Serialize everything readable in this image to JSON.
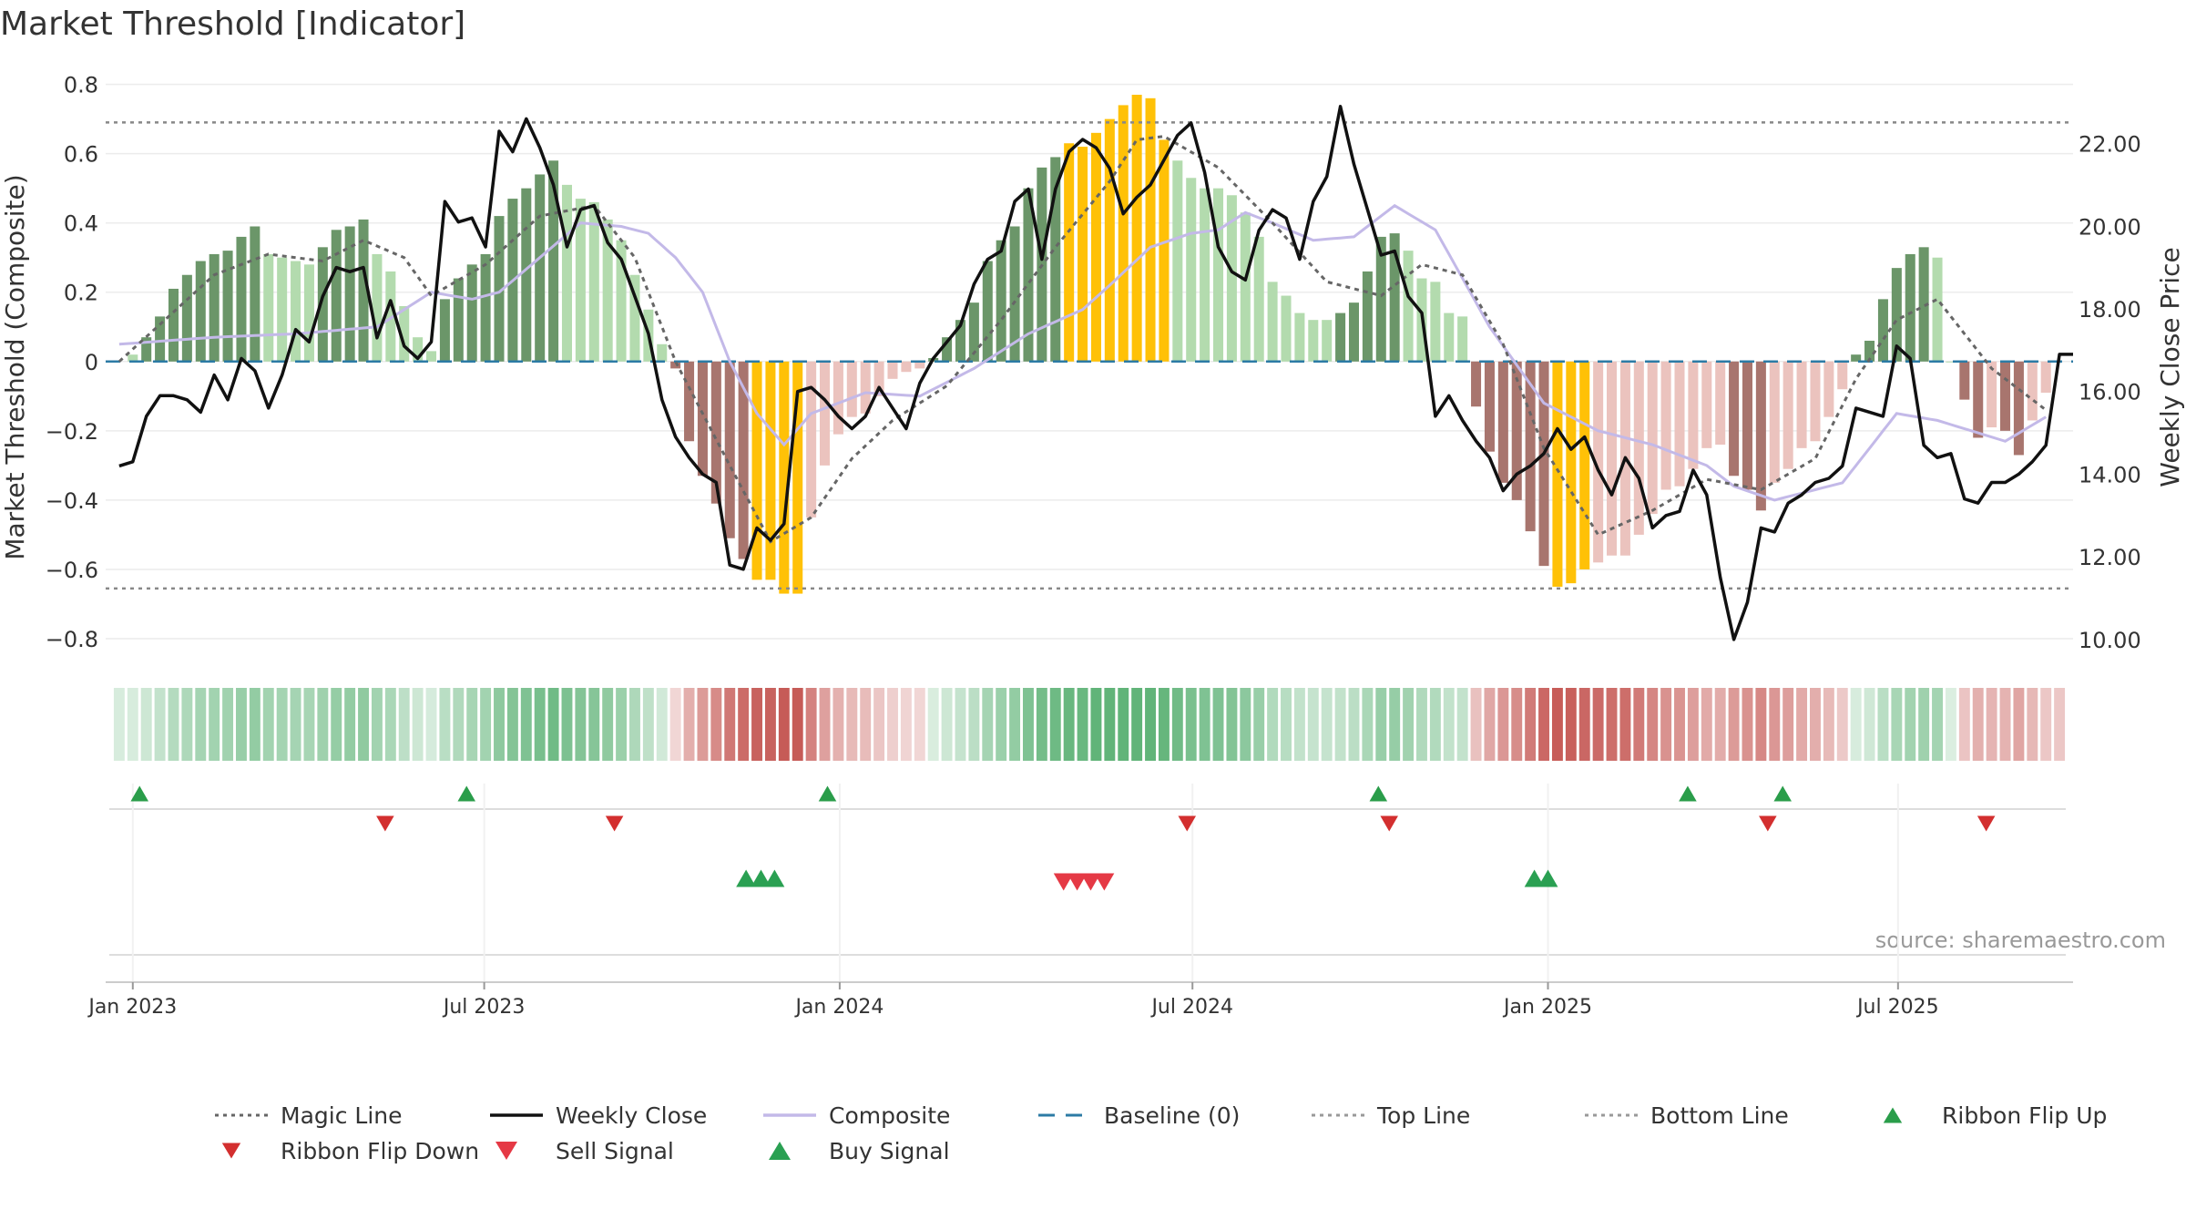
{
  "chart_data": {
    "type": "bar",
    "title": "Market Threshold [Indicator]",
    "ylabel_left": "Market Threshold (Composite)",
    "ylabel_right": "Weekly Close Price",
    "source": "source: sharemaestro.com",
    "ylim_left": [
      -0.85,
      0.82
    ],
    "ylim_right": [
      9.6,
      23.6
    ],
    "yticks_left": [
      0.8,
      0.6,
      0.4,
      0.2,
      0,
      -0.2,
      -0.4,
      -0.6,
      -0.8
    ],
    "yticks_left_labels": [
      "0.8",
      "0.6",
      "0.4",
      "0.2",
      "0",
      "−0.2",
      "−0.4",
      "−0.6",
      "−0.8"
    ],
    "yticks_right": [
      22,
      20,
      18,
      16,
      14,
      12,
      10
    ],
    "yticks_right_labels": [
      "22.00",
      "20.00",
      "18.00",
      "16.00",
      "14.00",
      "12.00",
      "10.00"
    ],
    "xlim_weeks": [
      -2,
      143
    ],
    "xticks": [
      {
        "week": 0,
        "label": "Jan 2023"
      },
      {
        "week": 25.9,
        "label": "Jul 2023"
      },
      {
        "week": 52.1,
        "label": "Jan 2024"
      },
      {
        "week": 78.1,
        "label": "Jul 2024"
      },
      {
        "week": 104.3,
        "label": "Jan 2025"
      },
      {
        "week": 130.1,
        "label": "Jul 2025"
      }
    ],
    "top_line": 0.69,
    "bottom_line": -0.655,
    "composite_keys": [
      [
        -1,
        0.05
      ],
      [
        6,
        0.07
      ],
      [
        12,
        0.08
      ],
      [
        18,
        0.1
      ],
      [
        20,
        0.15
      ],
      [
        22,
        0.2
      ],
      [
        25,
        0.18
      ],
      [
        27,
        0.2
      ],
      [
        30,
        0.3
      ],
      [
        33,
        0.4
      ],
      [
        36,
        0.39
      ],
      [
        38,
        0.37
      ],
      [
        40,
        0.3
      ],
      [
        42,
        0.2
      ],
      [
        44,
        0.0
      ],
      [
        46,
        -0.15
      ],
      [
        48,
        -0.24
      ],
      [
        50,
        -0.15
      ],
      [
        54,
        -0.09
      ],
      [
        58,
        -0.1
      ],
      [
        62,
        -0.02
      ],
      [
        66,
        0.08
      ],
      [
        70,
        0.15
      ],
      [
        72,
        0.22
      ],
      [
        75,
        0.33
      ],
      [
        78,
        0.37
      ],
      [
        80,
        0.38
      ],
      [
        82,
        0.43
      ],
      [
        84,
        0.4
      ],
      [
        87,
        0.35
      ],
      [
        90,
        0.36
      ],
      [
        93,
        0.45
      ],
      [
        96,
        0.38
      ],
      [
        100,
        0.1
      ],
      [
        104,
        -0.12
      ],
      [
        108,
        -0.2
      ],
      [
        112,
        -0.24
      ],
      [
        116,
        -0.3
      ],
      [
        118,
        -0.36
      ],
      [
        121,
        -0.4
      ],
      [
        126,
        -0.35
      ],
      [
        130,
        -0.15
      ],
      [
        133,
        -0.17
      ],
      [
        138,
        -0.23
      ],
      [
        141,
        -0.16
      ]
    ],
    "magic_keys": [
      [
        -1,
        0.0
      ],
      [
        6,
        0.25
      ],
      [
        10,
        0.31
      ],
      [
        14,
        0.29
      ],
      [
        17,
        0.35
      ],
      [
        20,
        0.3
      ],
      [
        22,
        0.19
      ],
      [
        26,
        0.28
      ],
      [
        30,
        0.42
      ],
      [
        34,
        0.45
      ],
      [
        37,
        0.3
      ],
      [
        40,
        0.0
      ],
      [
        44,
        -0.3
      ],
      [
        47,
        -0.52
      ],
      [
        50,
        -0.45
      ],
      [
        53,
        -0.28
      ],
      [
        56,
        -0.17
      ],
      [
        60,
        -0.07
      ],
      [
        64,
        0.12
      ],
      [
        68,
        0.33
      ],
      [
        72,
        0.52
      ],
      [
        74,
        0.64
      ],
      [
        76,
        0.65
      ],
      [
        80,
        0.56
      ],
      [
        84,
        0.4
      ],
      [
        88,
        0.23
      ],
      [
        92,
        0.19
      ],
      [
        95,
        0.28
      ],
      [
        98,
        0.25
      ],
      [
        101,
        0.05
      ],
      [
        104,
        -0.25
      ],
      [
        108,
        -0.5
      ],
      [
        112,
        -0.43
      ],
      [
        116,
        -0.34
      ],
      [
        120,
        -0.37
      ],
      [
        124,
        -0.28
      ],
      [
        127,
        -0.05
      ],
      [
        130,
        0.12
      ],
      [
        133,
        0.18
      ],
      [
        137,
        -0.02
      ],
      [
        141,
        -0.14
      ]
    ],
    "close_keys": [
      [
        -1,
        14.2
      ],
      [
        0,
        14.3
      ],
      [
        1,
        15.4
      ],
      [
        2,
        15.9
      ],
      [
        3,
        15.9
      ],
      [
        4,
        15.8
      ],
      [
        5,
        15.5
      ],
      [
        6,
        16.4
      ],
      [
        7,
        15.8
      ],
      [
        8,
        16.8
      ],
      [
        9,
        16.5
      ],
      [
        10,
        15.6
      ],
      [
        11,
        16.4
      ],
      [
        12,
        17.5
      ],
      [
        13,
        17.2
      ],
      [
        14,
        18.3
      ],
      [
        15,
        19.0
      ],
      [
        16,
        18.9
      ],
      [
        17,
        19.0
      ],
      [
        18,
        17.3
      ],
      [
        19,
        18.2
      ],
      [
        20,
        17.1
      ],
      [
        21,
        16.8
      ],
      [
        22,
        17.2
      ],
      [
        23,
        20.6
      ],
      [
        24,
        20.1
      ],
      [
        25,
        20.2
      ],
      [
        26,
        19.5
      ],
      [
        27,
        22.3
      ],
      [
        28,
        21.8
      ],
      [
        29,
        22.6
      ],
      [
        30,
        21.9
      ],
      [
        31,
        21.0
      ],
      [
        32,
        19.5
      ],
      [
        33,
        20.4
      ],
      [
        34,
        20.5
      ],
      [
        35,
        19.6
      ],
      [
        36,
        19.2
      ],
      [
        37,
        18.3
      ],
      [
        38,
        17.4
      ],
      [
        39,
        15.8
      ],
      [
        40,
        14.9
      ],
      [
        41,
        14.4
      ],
      [
        42,
        14.0
      ],
      [
        43,
        13.8
      ],
      [
        44,
        11.8
      ],
      [
        45,
        11.7
      ],
      [
        46,
        12.7
      ],
      [
        47,
        12.4
      ],
      [
        48,
        12.8
      ],
      [
        49,
        16.0
      ],
      [
        50,
        16.1
      ],
      [
        51,
        15.8
      ],
      [
        52,
        15.4
      ],
      [
        53,
        15.1
      ],
      [
        54,
        15.4
      ],
      [
        55,
        16.1
      ],
      [
        56,
        15.6
      ],
      [
        57,
        15.1
      ],
      [
        58,
        16.2
      ],
      [
        59,
        16.8
      ],
      [
        60,
        17.2
      ],
      [
        61,
        17.6
      ],
      [
        62,
        18.6
      ],
      [
        63,
        19.2
      ],
      [
        64,
        19.4
      ],
      [
        65,
        20.6
      ],
      [
        66,
        20.9
      ],
      [
        67,
        19.2
      ],
      [
        68,
        20.9
      ],
      [
        69,
        21.8
      ],
      [
        70,
        22.1
      ],
      [
        71,
        21.9
      ],
      [
        72,
        21.4
      ],
      [
        73,
        20.3
      ],
      [
        74,
        20.7
      ],
      [
        75,
        21.0
      ],
      [
        76,
        21.6
      ],
      [
        77,
        22.2
      ],
      [
        78,
        22.5
      ],
      [
        79,
        21.3
      ],
      [
        80,
        19.5
      ],
      [
        81,
        18.9
      ],
      [
        82,
        18.7
      ],
      [
        83,
        19.9
      ],
      [
        84,
        20.4
      ],
      [
        85,
        20.2
      ],
      [
        86,
        19.2
      ],
      [
        87,
        20.6
      ],
      [
        88,
        21.2
      ],
      [
        89,
        22.9
      ],
      [
        90,
        21.5
      ],
      [
        91,
        20.4
      ],
      [
        92,
        19.3
      ],
      [
        93,
        19.4
      ],
      [
        94,
        18.3
      ],
      [
        95,
        17.9
      ],
      [
        96,
        15.4
      ],
      [
        97,
        15.9
      ],
      [
        98,
        15.3
      ],
      [
        99,
        14.8
      ],
      [
        100,
        14.4
      ],
      [
        101,
        13.6
      ],
      [
        102,
        14.0
      ],
      [
        103,
        14.2
      ],
      [
        104,
        14.5
      ],
      [
        105,
        15.1
      ],
      [
        106,
        14.6
      ],
      [
        107,
        14.9
      ],
      [
        108,
        14.1
      ],
      [
        109,
        13.5
      ],
      [
        110,
        14.4
      ],
      [
        111,
        13.9
      ],
      [
        112,
        12.7
      ],
      [
        113,
        13.0
      ],
      [
        114,
        13.1
      ],
      [
        115,
        14.1
      ],
      [
        116,
        13.5
      ],
      [
        117,
        11.5
      ],
      [
        118,
        10.0
      ],
      [
        119,
        10.9
      ],
      [
        120,
        12.7
      ],
      [
        121,
        12.6
      ],
      [
        122,
        13.3
      ],
      [
        123,
        13.5
      ],
      [
        124,
        13.8
      ],
      [
        125,
        13.9
      ],
      [
        126,
        14.2
      ],
      [
        127,
        15.6
      ],
      [
        128,
        15.5
      ],
      [
        129,
        15.4
      ],
      [
        130,
        17.1
      ],
      [
        131,
        16.8
      ],
      [
        132,
        14.7
      ],
      [
        133,
        14.4
      ],
      [
        134,
        14.5
      ],
      [
        135,
        13.4
      ],
      [
        136,
        13.3
      ],
      [
        137,
        13.8
      ],
      [
        138,
        13.8
      ],
      [
        139,
        14.0
      ],
      [
        140,
        14.3
      ],
      [
        141,
        14.7
      ],
      [
        142,
        16.9
      ],
      [
        143,
        16.9
      ]
    ],
    "bar_keys": [
      [
        0,
        0.02
      ],
      [
        1,
        0.07
      ],
      [
        2,
        0.13
      ],
      [
        3,
        0.21
      ],
      [
        4,
        0.25
      ],
      [
        5,
        0.29
      ],
      [
        6,
        0.31
      ],
      [
        7,
        0.32
      ],
      [
        8,
        0.36
      ],
      [
        9,
        0.39
      ],
      [
        10,
        0.31
      ],
      [
        11,
        0.3
      ],
      [
        12,
        0.29
      ],
      [
        13,
        0.28
      ],
      [
        14,
        0.33
      ],
      [
        15,
        0.38
      ],
      [
        16,
        0.39
      ],
      [
        17,
        0.41
      ],
      [
        18,
        0.31
      ],
      [
        19,
        0.26
      ],
      [
        20,
        0.16
      ],
      [
        21,
        0.07
      ],
      [
        22,
        0.03
      ],
      [
        23,
        0.18
      ],
      [
        24,
        0.24
      ],
      [
        25,
        0.28
      ],
      [
        26,
        0.31
      ],
      [
        27,
        0.42
      ],
      [
        28,
        0.47
      ],
      [
        29,
        0.5
      ],
      [
        30,
        0.54
      ],
      [
        31,
        0.58
      ],
      [
        32,
        0.51
      ],
      [
        33,
        0.47
      ],
      [
        34,
        0.46
      ],
      [
        35,
        0.41
      ],
      [
        36,
        0.35
      ],
      [
        37,
        0.25
      ],
      [
        38,
        0.15
      ],
      [
        39,
        0.05
      ],
      [
        40,
        -0.02
      ],
      [
        41,
        -0.23
      ],
      [
        42,
        -0.33
      ],
      [
        43,
        -0.41
      ],
      [
        44,
        -0.51
      ],
      [
        45,
        -0.57
      ],
      [
        46,
        -0.63
      ],
      [
        47,
        -0.63
      ],
      [
        48,
        -0.67
      ],
      [
        49,
        -0.67
      ],
      [
        50,
        -0.45
      ],
      [
        51,
        -0.3
      ],
      [
        52,
        -0.21
      ],
      [
        53,
        -0.16
      ],
      [
        54,
        -0.15
      ],
      [
        55,
        -0.1
      ],
      [
        56,
        -0.05
      ],
      [
        57,
        -0.03
      ],
      [
        58,
        -0.02
      ],
      [
        59,
        0.01
      ],
      [
        60,
        0.07
      ],
      [
        61,
        0.12
      ],
      [
        62,
        0.17
      ],
      [
        63,
        0.29
      ],
      [
        64,
        0.35
      ],
      [
        65,
        0.39
      ],
      [
        66,
        0.5
      ],
      [
        67,
        0.56
      ],
      [
        68,
        0.59
      ],
      [
        69,
        0.63
      ],
      [
        70,
        0.62
      ],
      [
        71,
        0.66
      ],
      [
        72,
        0.7
      ],
      [
        73,
        0.74
      ],
      [
        74,
        0.77
      ],
      [
        75,
        0.76
      ],
      [
        76,
        0.64
      ],
      [
        77,
        0.58
      ],
      [
        78,
        0.53
      ],
      [
        79,
        0.5
      ],
      [
        80,
        0.5
      ],
      [
        81,
        0.48
      ],
      [
        82,
        0.43
      ],
      [
        83,
        0.36
      ],
      [
        84,
        0.23
      ],
      [
        85,
        0.19
      ],
      [
        86,
        0.14
      ],
      [
        87,
        0.12
      ],
      [
        88,
        0.12
      ],
      [
        89,
        0.14
      ],
      [
        90,
        0.17
      ],
      [
        91,
        0.26
      ],
      [
        92,
        0.36
      ],
      [
        93,
        0.37
      ],
      [
        94,
        0.32
      ],
      [
        95,
        0.24
      ],
      [
        96,
        0.23
      ],
      [
        97,
        0.14
      ],
      [
        98,
        0.13
      ],
      [
        99,
        -0.13
      ],
      [
        100,
        -0.26
      ],
      [
        101,
        -0.35
      ],
      [
        102,
        -0.4
      ],
      [
        103,
        -0.49
      ],
      [
        104,
        -0.59
      ],
      [
        105,
        -0.65
      ],
      [
        106,
        -0.64
      ],
      [
        107,
        -0.6
      ],
      [
        108,
        -0.58
      ],
      [
        109,
        -0.56
      ],
      [
        110,
        -0.56
      ],
      [
        111,
        -0.5
      ],
      [
        112,
        -0.44
      ],
      [
        113,
        -0.37
      ],
      [
        114,
        -0.36
      ],
      [
        115,
        -0.31
      ],
      [
        116,
        -0.25
      ],
      [
        117,
        -0.24
      ],
      [
        118,
        -0.33
      ],
      [
        119,
        -0.37
      ],
      [
        120,
        -0.43
      ],
      [
        121,
        -0.35
      ],
      [
        122,
        -0.31
      ],
      [
        123,
        -0.25
      ],
      [
        124,
        -0.23
      ],
      [
        125,
        -0.16
      ],
      [
        126,
        -0.08
      ],
      [
        127,
        0.02
      ],
      [
        128,
        0.06
      ],
      [
        129,
        0.18
      ],
      [
        130,
        0.27
      ],
      [
        131,
        0.31
      ],
      [
        132,
        0.33
      ],
      [
        133,
        0.3
      ],
      [
        134,
        0.0
      ],
      [
        135,
        -0.11
      ],
      [
        136,
        -0.22
      ],
      [
        137,
        -0.19
      ],
      [
        138,
        -0.2
      ],
      [
        139,
        -0.27
      ],
      [
        140,
        -0.17
      ],
      [
        141,
        -0.09
      ]
    ],
    "ribbon_first_week": -1,
    "ribbon_last_week": 142,
    "signals": {
      "ribbon_flip_up": [
        0.5,
        24.6,
        51.2,
        91.8,
        114.6,
        121.6
      ],
      "ribbon_flip_down": [
        18.6,
        35.5,
        77.7,
        92.6,
        120.5,
        136.6
      ],
      "buy_signal": [
        45.2,
        46.3,
        47.3,
        103.3,
        104.3
      ],
      "sell_signal": [
        68.6,
        69.6,
        70.6,
        71.6
      ]
    },
    "legend": [
      {
        "label": "Magic Line",
        "kind": "dotted",
        "color": "#666666"
      },
      {
        "label": "Weekly Close",
        "kind": "solid",
        "color": "#111111"
      },
      {
        "label": "Composite",
        "kind": "solid",
        "color": "#c3b9e8"
      },
      {
        "label": "Baseline (0)",
        "kind": "dashed",
        "color": "#2c7ba5"
      },
      {
        "label": "Top Line",
        "kind": "dotted",
        "color": "#999999"
      },
      {
        "label": "Bottom Line",
        "kind": "dotted",
        "color": "#999999"
      },
      {
        "label": "Ribbon Flip Up",
        "kind": "tri-up",
        "color": "#2a9d4a"
      },
      {
        "label": "Ribbon Flip Down",
        "kind": "tri-down",
        "color": "#d32f2f"
      },
      {
        "label": "Sell Signal",
        "kind": "tri-down",
        "color": "#e53945"
      },
      {
        "label": "Buy Signal",
        "kind": "tri-up",
        "color": "#2aa052"
      }
    ],
    "colors": {
      "bar_pos_dark": "#6b9669",
      "bar_pos_light": "#b3dbae",
      "bar_neg_dark": "#a8756e",
      "bar_neg_light": "#ebc3be",
      "bar_extreme": "#ffc107",
      "magic": "#666666",
      "close": "#111111",
      "composite": "#c3b9e8",
      "baseline": "#2c7ba5",
      "threshold": "#888888",
      "ribbon_pos": "#59b072",
      "ribbon_neg": "#c3524e",
      "flip_up": "#2a9d4a",
      "flip_down": "#d32f2f",
      "sell": "#e53945",
      "buy": "#2aa052"
    }
  }
}
